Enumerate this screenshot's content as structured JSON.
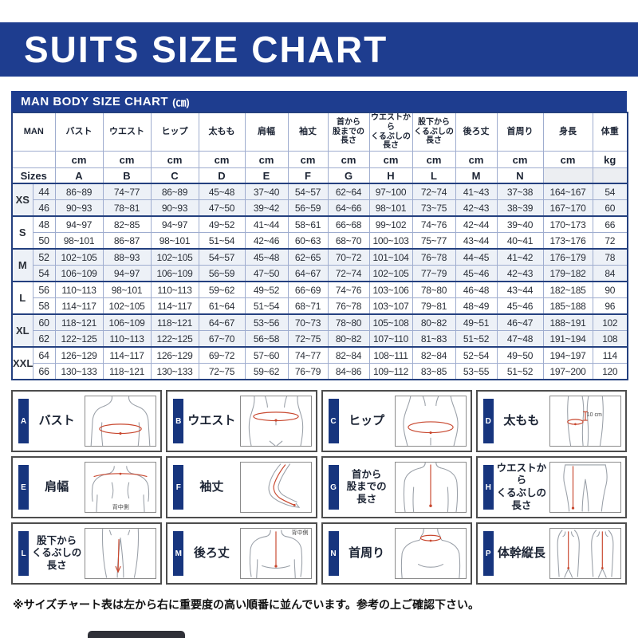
{
  "page": {
    "title": "SUITS SIZE CHART",
    "note": "※サイズチャート表は左から右に重要度の高い順番に並んでいます。参考の上ご確認下さい。"
  },
  "colors": {
    "navy": "#1e3d8f",
    "table_border_navy": "#24407f",
    "shaded_row": "#edf1f7",
    "measure_line_red": "#c8472e"
  },
  "size_table": {
    "title": "MAN BODY SIZE CHART",
    "title_unit": "(㎝)",
    "corner_label": "MAN",
    "sizes_label": "Sizes",
    "columns": [
      {
        "label": "バスト",
        "unit": "cm",
        "letter": "A"
      },
      {
        "label": "ウエスト",
        "unit": "cm",
        "letter": "B"
      },
      {
        "label": "ヒップ",
        "unit": "cm",
        "letter": "C"
      },
      {
        "label": "太もも",
        "unit": "cm",
        "letter": "D"
      },
      {
        "label": "肩幅",
        "unit": "cm",
        "letter": "E"
      },
      {
        "label": "袖丈",
        "unit": "cm",
        "letter": "F"
      },
      {
        "label": "首から\n股までの\n長さ",
        "unit": "cm",
        "letter": "G",
        "long": true
      },
      {
        "label": "ウエストから\nくるぶしの\n長さ",
        "unit": "cm",
        "letter": "H",
        "long": true
      },
      {
        "label": "股下から\nくるぶしの\n長さ",
        "unit": "cm",
        "letter": "L",
        "long": true
      },
      {
        "label": "後ろ丈",
        "unit": "cm",
        "letter": "M"
      },
      {
        "label": "首周り",
        "unit": "cm",
        "letter": "N"
      },
      {
        "label": "身長",
        "unit": "cm",
        "letter": ""
      },
      {
        "label": "体重",
        "unit": "kg",
        "letter": ""
      }
    ],
    "groups": [
      {
        "size": "XS",
        "shaded": true,
        "rows": [
          {
            "num": "44",
            "values": [
              "86~89",
              "74~77",
              "86~89",
              "45~48",
              "37~40",
              "54~57",
              "62~64",
              "97~100",
              "72~74",
              "41~43",
              "37~38",
              "164~167",
              "54"
            ]
          },
          {
            "num": "46",
            "values": [
              "90~93",
              "78~81",
              "90~93",
              "47~50",
              "39~42",
              "56~59",
              "64~66",
              "98~101",
              "73~75",
              "42~43",
              "38~39",
              "167~170",
              "60"
            ]
          }
        ]
      },
      {
        "size": "S",
        "shaded": false,
        "rows": [
          {
            "num": "48",
            "values": [
              "94~97",
              "82~85",
              "94~97",
              "49~52",
              "41~44",
              "58~61",
              "66~68",
              "99~102",
              "74~76",
              "42~44",
              "39~40",
              "170~173",
              "66"
            ]
          },
          {
            "num": "50",
            "values": [
              "98~101",
              "86~87",
              "98~101",
              "51~54",
              "42~46",
              "60~63",
              "68~70",
              "100~103",
              "75~77",
              "43~44",
              "40~41",
              "173~176",
              "72"
            ]
          }
        ]
      },
      {
        "size": "M",
        "shaded": true,
        "rows": [
          {
            "num": "52",
            "values": [
              "102~105",
              "88~93",
              "102~105",
              "54~57",
              "45~48",
              "62~65",
              "70~72",
              "101~104",
              "76~78",
              "44~45",
              "41~42",
              "176~179",
              "78"
            ]
          },
          {
            "num": "54",
            "values": [
              "106~109",
              "94~97",
              "106~109",
              "56~59",
              "47~50",
              "64~67",
              "72~74",
              "102~105",
              "77~79",
              "45~46",
              "42~43",
              "179~182",
              "84"
            ]
          }
        ]
      },
      {
        "size": "L",
        "shaded": false,
        "rows": [
          {
            "num": "56",
            "values": [
              "110~113",
              "98~101",
              "110~113",
              "59~62",
              "49~52",
              "66~69",
              "74~76",
              "103~106",
              "78~80",
              "46~48",
              "43~44",
              "182~185",
              "90"
            ]
          },
          {
            "num": "58",
            "values": [
              "114~117",
              "102~105",
              "114~117",
              "61~64",
              "51~54",
              "68~71",
              "76~78",
              "103~107",
              "79~81",
              "48~49",
              "45~46",
              "185~188",
              "96"
            ]
          }
        ]
      },
      {
        "size": "XL",
        "shaded": true,
        "rows": [
          {
            "num": "60",
            "values": [
              "118~121",
              "106~109",
              "118~121",
              "64~67",
              "53~56",
              "70~73",
              "78~80",
              "105~108",
              "80~82",
              "49~51",
              "46~47",
              "188~191",
              "102"
            ]
          },
          {
            "num": "62",
            "values": [
              "122~125",
              "110~113",
              "122~125",
              "67~70",
              "56~58",
              "72~75",
              "80~82",
              "107~110",
              "81~83",
              "51~52",
              "47~48",
              "191~194",
              "108"
            ]
          }
        ]
      },
      {
        "size": "XXL",
        "shaded": false,
        "rows": [
          {
            "num": "64",
            "values": [
              "126~129",
              "114~117",
              "126~129",
              "69~72",
              "57~60",
              "74~77",
              "82~84",
              "108~111",
              "82~84",
              "52~54",
              "49~50",
              "194~197",
              "114"
            ]
          },
          {
            "num": "66",
            "values": [
              "130~133",
              "118~121",
              "130~133",
              "72~75",
              "59~62",
              "76~79",
              "84~86",
              "109~112",
              "83~85",
              "53~55",
              "51~52",
              "197~200",
              "120"
            ]
          }
        ]
      }
    ]
  },
  "diagrams": [
    {
      "letter": "A",
      "label": "バスト"
    },
    {
      "letter": "B",
      "label": "ウエスト"
    },
    {
      "letter": "C",
      "label": "ヒップ"
    },
    {
      "letter": "D",
      "label": "太もも",
      "annotation": "10 cm"
    },
    {
      "letter": "E",
      "label": "肩幅",
      "annotation": "背中側"
    },
    {
      "letter": "F",
      "label": "袖丈"
    },
    {
      "letter": "G",
      "label": "首から\n股までの\n長さ"
    },
    {
      "letter": "H",
      "label": "ウエストから\nくるぶしの\n長さ"
    },
    {
      "letter": "L",
      "label": "股下から\nくるぶしの\n長さ"
    },
    {
      "letter": "M",
      "label": "後ろ丈",
      "annotation": "背中側"
    },
    {
      "letter": "N",
      "label": "首周り"
    },
    {
      "letter": "P",
      "label": "体幹縦長"
    }
  ]
}
